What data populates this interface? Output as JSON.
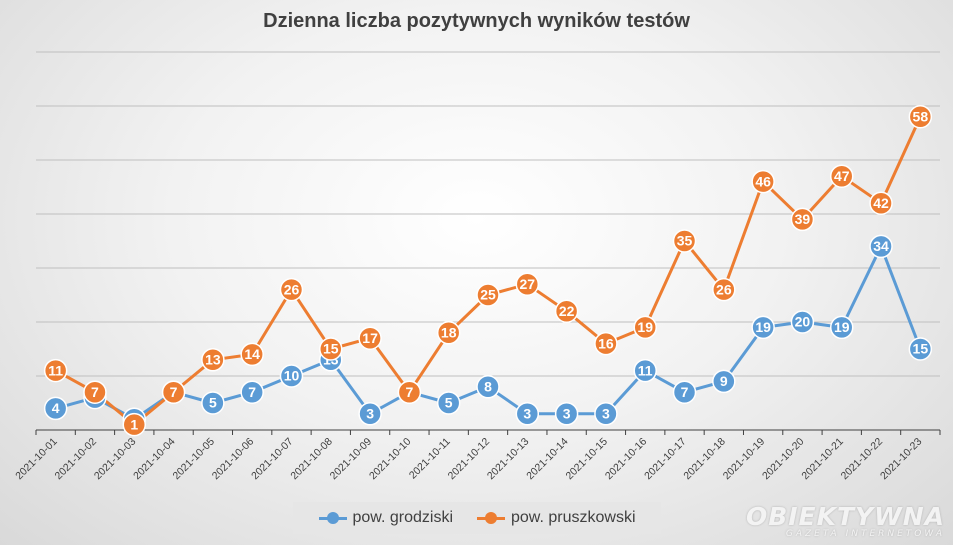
{
  "chart_data": {
    "type": "line",
    "title": "Dzienna liczba pozytywnych wyników testów",
    "xlabel": "",
    "ylabel": "",
    "ylim": [
      0,
      70
    ],
    "grid": true,
    "legend_position": "bottom",
    "categories": [
      "2021-10-01",
      "2021-10-02",
      "2021-10-03",
      "2021-10-04",
      "2021-10-05",
      "2021-10-06",
      "2021-10-07",
      "2021-10-08",
      "2021-10-09",
      "2021-10-10",
      "2021-10-11",
      "2021-10-12",
      "2021-10-13",
      "2021-10-14",
      "2021-10-15",
      "2021-10-16",
      "2021-10-17",
      "2021-10-18",
      "2021-10-19",
      "2021-10-20",
      "2021-10-21",
      "2021-10-22",
      "2021-10-23"
    ],
    "series": [
      {
        "name": "pow. grodziski",
        "color": "#5b9bd5",
        "values": [
          4,
          6,
          2,
          7,
          5,
          7,
          10,
          13,
          3,
          7,
          5,
          8,
          3,
          3,
          3,
          11,
          7,
          9,
          19,
          20,
          19,
          34,
          15
        ]
      },
      {
        "name": "pow. pruszkowski",
        "color": "#ed7d31",
        "values": [
          11,
          7,
          1,
          7,
          13,
          14,
          26,
          15,
          17,
          7,
          18,
          25,
          27,
          22,
          16,
          19,
          35,
          26,
          46,
          39,
          47,
          42,
          58
        ]
      }
    ]
  },
  "watermark": {
    "main": "OBIEKTYWNA",
    "sub": "GAZETA INTERNETOWA"
  }
}
